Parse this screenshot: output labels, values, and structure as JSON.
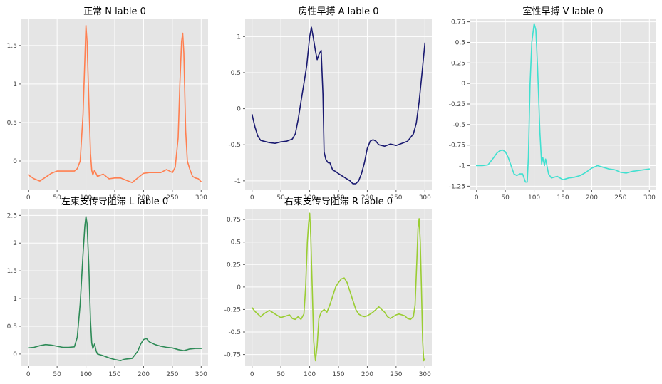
{
  "chart_data": [
    {
      "type": "line",
      "title": "正常 N lable 0",
      "color": "#ff7f50",
      "grid": true,
      "xlim": [
        -12,
        312
      ],
      "ylim": [
        -0.37,
        1.85
      ],
      "xticks": [
        0,
        50,
        100,
        150,
        200,
        250,
        300
      ],
      "yticks": [
        0.0,
        0.5,
        1.0,
        1.5
      ],
      "x": [
        0,
        10,
        20,
        30,
        40,
        50,
        60,
        70,
        80,
        85,
        90,
        95,
        98,
        100,
        102,
        105,
        108,
        110,
        112,
        115,
        120,
        130,
        140,
        150,
        160,
        170,
        180,
        190,
        200,
        210,
        220,
        230,
        240,
        250,
        255,
        260,
        263,
        266,
        268,
        270,
        273,
        276,
        280,
        285,
        290,
        295,
        300
      ],
      "y": [
        -0.18,
        -0.23,
        -0.26,
        -0.21,
        -0.16,
        -0.13,
        -0.13,
        -0.13,
        -0.13,
        -0.1,
        0.0,
        0.6,
        1.3,
        1.76,
        1.55,
        0.8,
        0.1,
        -0.12,
        -0.18,
        -0.12,
        -0.2,
        -0.17,
        -0.23,
        -0.22,
        -0.22,
        -0.25,
        -0.28,
        -0.22,
        -0.16,
        -0.15,
        -0.15,
        -0.15,
        -0.11,
        -0.15,
        -0.08,
        0.3,
        1.0,
        1.55,
        1.66,
        1.4,
        0.4,
        0.0,
        -0.1,
        -0.2,
        -0.22,
        -0.23,
        -0.27
      ]
    },
    {
      "type": "line",
      "title": "房性早搏 A lable 0",
      "color": "#191970",
      "grid": true,
      "xlim": [
        -12,
        312
      ],
      "ylim": [
        -1.12,
        1.25
      ],
      "xticks": [
        0,
        50,
        100,
        150,
        200,
        250,
        300
      ],
      "yticks": [
        -1.0,
        -0.5,
        0.0,
        0.5,
        1.0
      ],
      "x": [
        0,
        5,
        10,
        15,
        20,
        30,
        40,
        50,
        60,
        70,
        75,
        80,
        85,
        90,
        95,
        100,
        103,
        106,
        110,
        113,
        116,
        120,
        123,
        125,
        128,
        132,
        135,
        140,
        145,
        150,
        160,
        170,
        175,
        180,
        185,
        190,
        195,
        200,
        205,
        210,
        215,
        220,
        230,
        240,
        250,
        260,
        270,
        280,
        285,
        290,
        295,
        300
      ],
      "y": [
        -0.08,
        -0.25,
        -0.38,
        -0.44,
        -0.45,
        -0.47,
        -0.48,
        -0.46,
        -0.45,
        -0.42,
        -0.35,
        -0.15,
        0.1,
        0.35,
        0.6,
        1.0,
        1.13,
        1.0,
        0.8,
        0.68,
        0.75,
        0.81,
        0.2,
        -0.6,
        -0.7,
        -0.75,
        -0.75,
        -0.85,
        -0.87,
        -0.9,
        -0.95,
        -1.0,
        -1.04,
        -1.04,
        -1.0,
        -0.9,
        -0.75,
        -0.55,
        -0.45,
        -0.43,
        -0.45,
        -0.5,
        -0.52,
        -0.49,
        -0.51,
        -0.48,
        -0.45,
        -0.35,
        -0.2,
        0.1,
        0.5,
        0.91
      ]
    },
    {
      "type": "line",
      "title": "室性早搏 V lable 0",
      "color": "#40e0d0",
      "grid": true,
      "xlim": [
        -12,
        312
      ],
      "ylim": [
        -1.29,
        0.79
      ],
      "xticks": [
        0,
        50,
        100,
        150,
        200,
        250,
        300
      ],
      "yticks": [
        -1.25,
        -1.0,
        -0.75,
        -0.5,
        -0.25,
        0.0,
        0.25,
        0.5,
        0.75
      ],
      "x": [
        0,
        10,
        20,
        30,
        35,
        40,
        45,
        50,
        55,
        60,
        65,
        70,
        75,
        80,
        85,
        88,
        90,
        93,
        96,
        100,
        103,
        106,
        110,
        113,
        115,
        118,
        120,
        125,
        130,
        140,
        150,
        160,
        170,
        180,
        190,
        200,
        210,
        220,
        230,
        240,
        250,
        260,
        270,
        280,
        290,
        300
      ],
      "y": [
        -1.0,
        -1.0,
        -0.99,
        -0.9,
        -0.85,
        -0.82,
        -0.81,
        -0.83,
        -0.9,
        -1.0,
        -1.1,
        -1.12,
        -1.1,
        -1.1,
        -1.2,
        -1.2,
        -0.9,
        0.0,
        0.5,
        0.73,
        0.65,
        0.2,
        -0.6,
        -0.98,
        -0.9,
        -1.0,
        -0.92,
        -1.1,
        -1.15,
        -1.13,
        -1.17,
        -1.15,
        -1.14,
        -1.12,
        -1.08,
        -1.03,
        -1.0,
        -1.02,
        -1.04,
        -1.05,
        -1.08,
        -1.09,
        -1.07,
        -1.06,
        -1.05,
        -1.04
      ]
    },
    {
      "type": "line",
      "title": "左束支传导阻滞 L lable 0",
      "color": "#2e8b57",
      "grid": true,
      "xlim": [
        -12,
        312
      ],
      "ylim": [
        -0.22,
        2.62
      ],
      "xticks": [
        0,
        50,
        100,
        150,
        200,
        250,
        300
      ],
      "yticks": [
        0.0,
        0.5,
        1.0,
        1.5,
        2.0,
        2.5
      ],
      "x": [
        0,
        10,
        20,
        30,
        40,
        50,
        60,
        70,
        80,
        85,
        90,
        95,
        98,
        100,
        102,
        105,
        108,
        110,
        112,
        115,
        118,
        120,
        130,
        140,
        150,
        160,
        165,
        170,
        180,
        190,
        195,
        200,
        205,
        210,
        220,
        230,
        240,
        250,
        260,
        270,
        280,
        290,
        300
      ],
      "y": [
        0.11,
        0.12,
        0.15,
        0.17,
        0.16,
        0.14,
        0.12,
        0.12,
        0.13,
        0.3,
        0.9,
        1.8,
        2.3,
        2.48,
        2.35,
        1.6,
        0.6,
        0.2,
        0.1,
        0.18,
        0.05,
        0.0,
        -0.03,
        -0.07,
        -0.1,
        -0.12,
        -0.1,
        -0.09,
        -0.08,
        0.05,
        0.18,
        0.26,
        0.28,
        0.22,
        0.17,
        0.14,
        0.12,
        0.11,
        0.08,
        0.06,
        0.09,
        0.1,
        0.1
      ]
    },
    {
      "type": "line",
      "title": "右束支传导阻滞 R lable 0",
      "color": "#9acd32",
      "grid": true,
      "xlim": [
        -12,
        312
      ],
      "ylim": [
        -0.88,
        0.87
      ],
      "xticks": [
        0,
        50,
        100,
        150,
        200,
        250,
        300
      ],
      "yticks": [
        -0.75,
        -0.5,
        -0.25,
        0.0,
        0.25,
        0.5,
        0.75
      ],
      "x": [
        0,
        5,
        10,
        15,
        20,
        25,
        30,
        35,
        40,
        45,
        50,
        55,
        60,
        65,
        70,
        75,
        80,
        85,
        90,
        93,
        96,
        98,
        100,
        102,
        104,
        107,
        110,
        113,
        116,
        120,
        125,
        130,
        135,
        140,
        145,
        150,
        155,
        160,
        165,
        170,
        175,
        180,
        185,
        190,
        195,
        200,
        205,
        210,
        215,
        220,
        225,
        230,
        235,
        240,
        245,
        250,
        255,
        260,
        265,
        270,
        275,
        280,
        283,
        286,
        288,
        290,
        292,
        294,
        296,
        298,
        300
      ],
      "y": [
        -0.23,
        -0.27,
        -0.3,
        -0.33,
        -0.3,
        -0.28,
        -0.26,
        -0.28,
        -0.3,
        -0.32,
        -0.34,
        -0.33,
        -0.32,
        -0.31,
        -0.35,
        -0.36,
        -0.33,
        -0.36,
        -0.3,
        0.0,
        0.5,
        0.7,
        0.82,
        0.55,
        0.1,
        -0.6,
        -0.82,
        -0.65,
        -0.35,
        -0.28,
        -0.25,
        -0.28,
        -0.2,
        -0.1,
        0.0,
        0.05,
        0.09,
        0.1,
        0.05,
        -0.05,
        -0.15,
        -0.25,
        -0.3,
        -0.32,
        -0.33,
        -0.32,
        -0.3,
        -0.28,
        -0.25,
        -0.22,
        -0.25,
        -0.28,
        -0.33,
        -0.35,
        -0.33,
        -0.31,
        -0.3,
        -0.31,
        -0.32,
        -0.35,
        -0.36,
        -0.33,
        -0.2,
        0.3,
        0.65,
        0.76,
        0.5,
        0.0,
        -0.6,
        -0.82,
        -0.8
      ]
    }
  ]
}
